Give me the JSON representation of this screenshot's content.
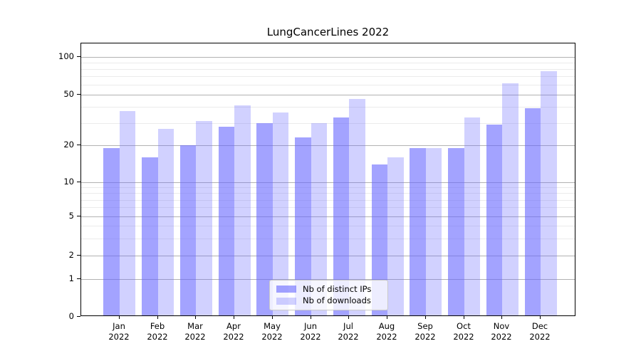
{
  "title": "LungCancerLines 2022",
  "colors": {
    "bar_base_hex": "#6666ff",
    "bar_ips": "rgba(102,102,255,0.6)",
    "bar_downloads": "rgba(102,102,255,0.3)",
    "major_grid": "#b2b2b2",
    "minor_grid": "#ebebeb",
    "axis": "#000000",
    "background": "#ffffff"
  },
  "legend": {
    "items": [
      {
        "label": "Nb of distinct IPs",
        "series": "ips"
      },
      {
        "label": "Nb of downloads",
        "series": "downloads"
      }
    ],
    "position": "lower center"
  },
  "y_axis": {
    "tick_labels": [
      "100",
      "50",
      "20",
      "10",
      "5",
      "2",
      "1",
      "0"
    ],
    "ticks": [
      100,
      50,
      20,
      10,
      5,
      2,
      1,
      0
    ],
    "minor_ticks": [
      90,
      80,
      70,
      60,
      40,
      30,
      9,
      8,
      7,
      6,
      4,
      3
    ]
  },
  "chart_data": {
    "type": "bar",
    "title": "LungCancerLines 2022",
    "categories": [
      "Jan 2022",
      "Feb 2022",
      "Mar 2022",
      "Apr 2022",
      "May 2022",
      "Jun 2022",
      "Jul 2022",
      "Aug 2022",
      "Sep 2022",
      "Oct 2022",
      "Nov 2022",
      "Dec 2022"
    ],
    "series": [
      {
        "name": "Nb of distinct IPs",
        "values": [
          19,
          16,
          20,
          28,
          30,
          23,
          33,
          14,
          19,
          19,
          29,
          39
        ]
      },
      {
        "name": "Nb of downloads",
        "values": [
          37,
          27,
          31,
          41,
          36,
          30,
          46,
          16,
          19,
          33,
          62,
          77
        ]
      }
    ],
    "xlabel": "",
    "ylabel": "",
    "yscale": "log-like with zero baseline (ticks 0,1,2,5,10,20,50,100)",
    "ylim": [
      0,
      130
    ],
    "grid": true,
    "legend_position": "lower center",
    "scale_anchors": [
      [
        100,
        19
      ],
      [
        50,
        72
      ],
      [
        20,
        143
      ],
      [
        10,
        195
      ],
      [
        5,
        243
      ],
      [
        2,
        298
      ],
      [
        1,
        331
      ],
      [
        0,
        384
      ]
    ]
  }
}
